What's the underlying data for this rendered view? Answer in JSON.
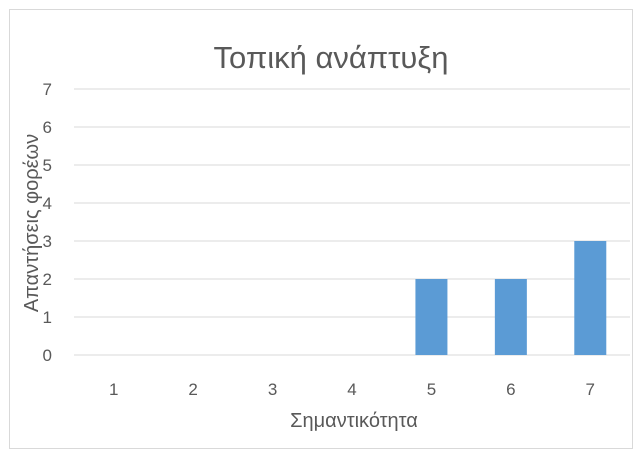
{
  "chart_data": {
    "type": "bar",
    "title": "Τοπική ανάπτυξη",
    "xlabel": "Σημαντικότητα",
    "ylabel": "Απαντήσεις φορέων",
    "categories": [
      "1",
      "2",
      "3",
      "4",
      "5",
      "6",
      "7"
    ],
    "values": [
      0,
      0,
      0,
      0,
      2,
      2,
      3
    ],
    "ylim": [
      0,
      7
    ],
    "yticks": [
      "0",
      "1",
      "2",
      "3",
      "4",
      "5",
      "6",
      "7"
    ],
    "grid": true,
    "legend": "none",
    "colors": {
      "bar": "#5b9bd5",
      "grid": "#d9d9d9",
      "text": "#595959"
    }
  }
}
